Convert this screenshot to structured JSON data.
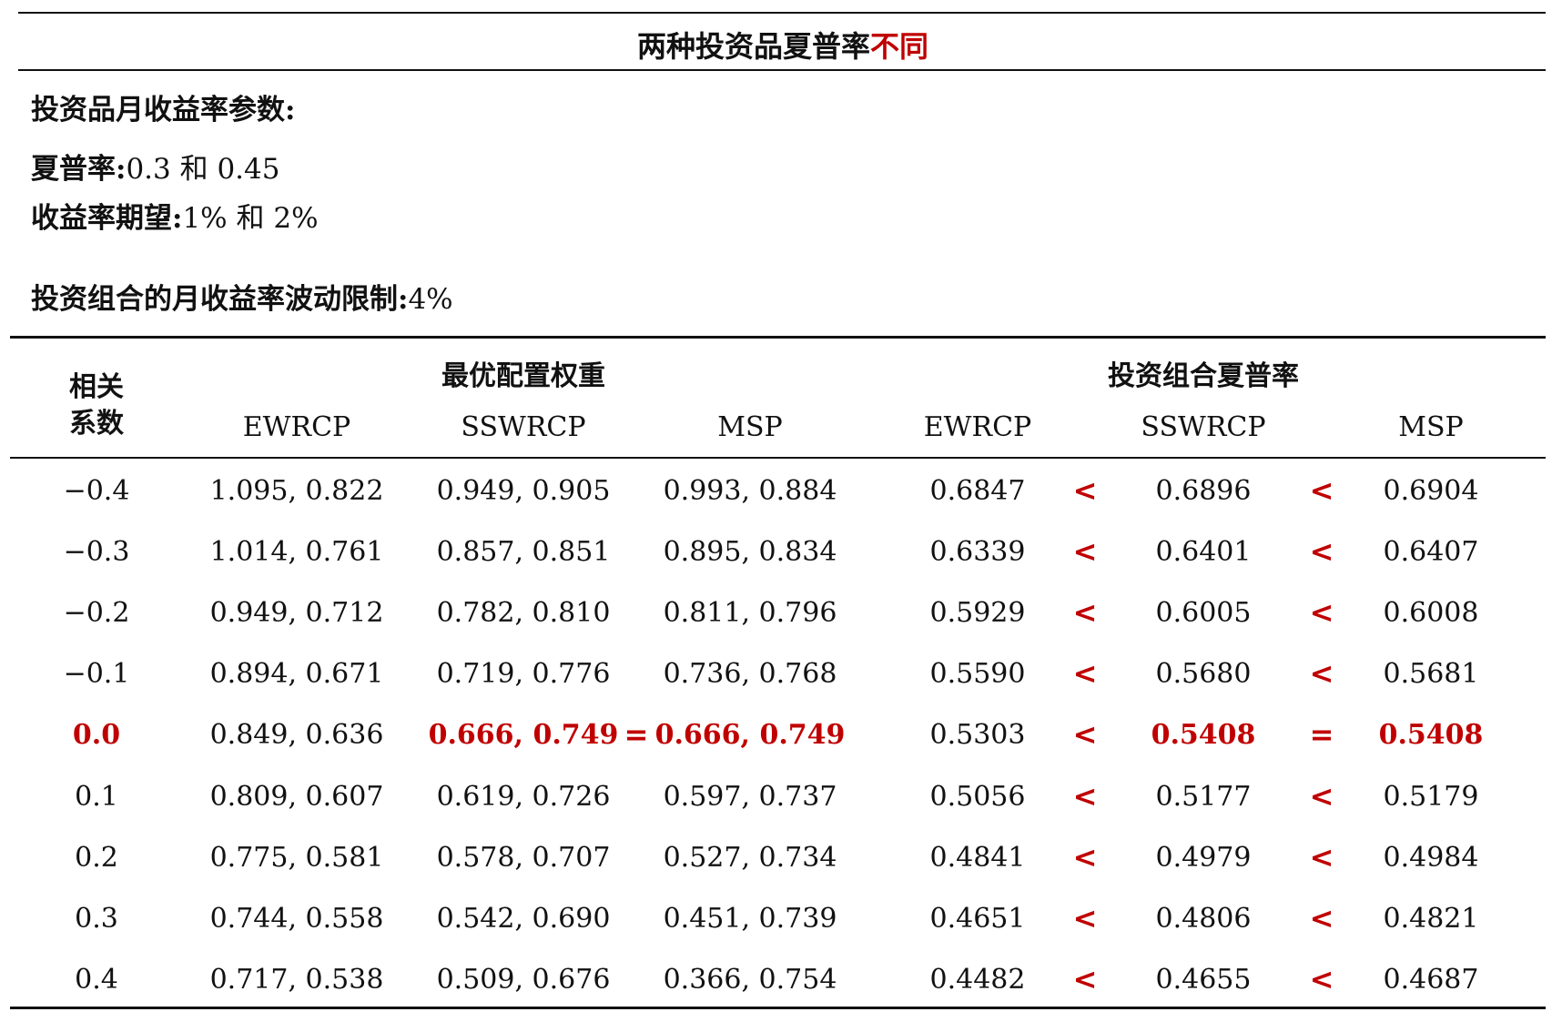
{
  "title": {
    "main": "两种投资品夏普率",
    "highlight": "不同"
  },
  "params": {
    "heading": "投资品月收益率参数:",
    "sharpe_label": "夏普率:",
    "sharpe_value": "0.3 和 0.45",
    "return_label": "收益率期望:",
    "return_value": "1% 和 2%",
    "vol_label": "投资组合的月收益率波动限制:",
    "vol_value": "4%"
  },
  "table": {
    "corr_header_1": "相关",
    "corr_header_2": "系数",
    "group_weights": "最优配置权重",
    "group_sharpe": "投资组合夏普率",
    "sub_headers": [
      "EWRCP",
      "SSWRCP",
      "MSP",
      "EWRCP",
      "SSWRCP",
      "MSP"
    ],
    "accent_color": "#c00000",
    "rows": [
      {
        "corr": "−0.4",
        "ew": "1.095, 0.822",
        "ss": "0.949, 0.905",
        "msp": "0.993, 0.884",
        "ew_sr": "0.6847",
        "op1": "<",
        "ss_sr": "0.6896",
        "op2": "<",
        "msp_sr": "0.6904",
        "highlight": false
      },
      {
        "corr": "−0.3",
        "ew": "1.014, 0.761",
        "ss": "0.857, 0.851",
        "msp": "0.895, 0.834",
        "ew_sr": "0.6339",
        "op1": "<",
        "ss_sr": "0.6401",
        "op2": "<",
        "msp_sr": "0.6407",
        "highlight": false
      },
      {
        "corr": "−0.2",
        "ew": "0.949, 0.712",
        "ss": "0.782, 0.810",
        "msp": "0.811, 0.796",
        "ew_sr": "0.5929",
        "op1": "<",
        "ss_sr": "0.6005",
        "op2": "<",
        "msp_sr": "0.6008",
        "highlight": false
      },
      {
        "corr": "−0.1",
        "ew": "0.894, 0.671",
        "ss": "0.719, 0.776",
        "msp": "0.736, 0.768",
        "ew_sr": "0.5590",
        "op1": "<",
        "ss_sr": "0.5680",
        "op2": "<",
        "msp_sr": "0.5681",
        "highlight": false
      },
      {
        "corr": "0.0",
        "ew": "0.849, 0.636",
        "ss": "0.666, 0.749",
        "eq": "=",
        "msp": "0.666, 0.749",
        "ew_sr": "0.5303",
        "op1": "<",
        "ss_sr": "0.5408",
        "op2": "=",
        "msp_sr": "0.5408",
        "highlight": true
      },
      {
        "corr": "0.1",
        "ew": "0.809, 0.607",
        "ss": "0.619, 0.726",
        "msp": "0.597, 0.737",
        "ew_sr": "0.5056",
        "op1": "<",
        "ss_sr": "0.5177",
        "op2": "<",
        "msp_sr": "0.5179",
        "highlight": false
      },
      {
        "corr": "0.2",
        "ew": "0.775, 0.581",
        "ss": "0.578, 0.707",
        "msp": "0.527, 0.734",
        "ew_sr": "0.4841",
        "op1": "<",
        "ss_sr": "0.4979",
        "op2": "<",
        "msp_sr": "0.4984",
        "highlight": false
      },
      {
        "corr": "0.3",
        "ew": "0.744, 0.558",
        "ss": "0.542, 0.690",
        "msp": "0.451, 0.739",
        "ew_sr": "0.4651",
        "op1": "<",
        "ss_sr": "0.4806",
        "op2": "<",
        "msp_sr": "0.4821",
        "highlight": false
      },
      {
        "corr": "0.4",
        "ew": "0.717, 0.538",
        "ss": "0.509, 0.676",
        "msp": "0.366, 0.754",
        "ew_sr": "0.4482",
        "op1": "<",
        "ss_sr": "0.4655",
        "op2": "<",
        "msp_sr": "0.4687",
        "highlight": false
      }
    ]
  }
}
